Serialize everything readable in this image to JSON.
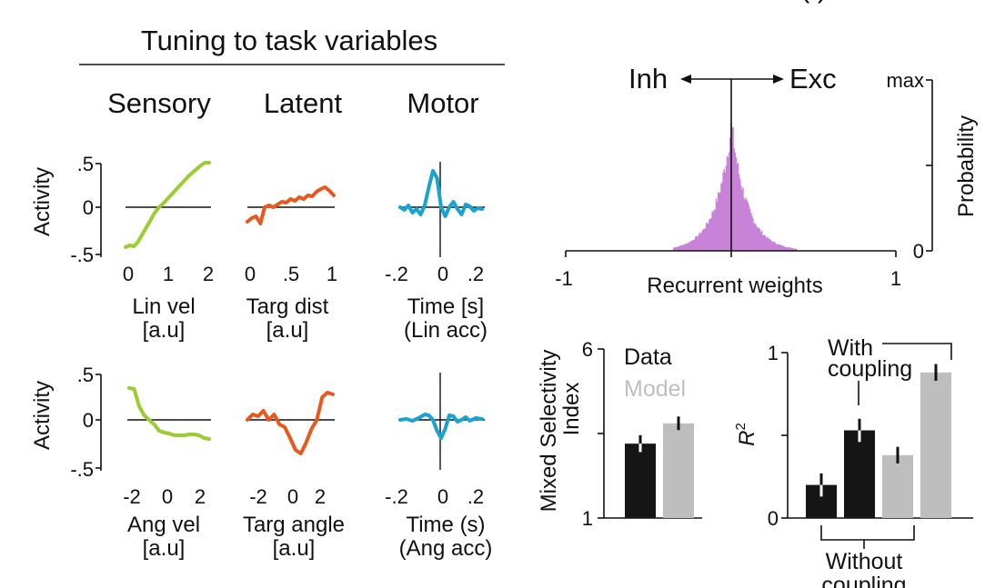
{
  "colors": {
    "lin_vel": "#9ACD32",
    "targ_dist": "#E8581E",
    "time_lin": "#1AA3D0",
    "ang_vel": "#9ACD32",
    "targ_angle": "#E8581E",
    "time_ang": "#1AA3D0",
    "hist": "#C882D8",
    "data_bar": "#151515",
    "model_bar": "#BEBEBE"
  },
  "header": {
    "title": "Tuning to task variables",
    "top_right_fragment": "(         )"
  },
  "column_labels": [
    "Sensory",
    "Latent",
    "Motor"
  ],
  "activity_label": "Activity",
  "y_ticks": [
    ".5",
    "0",
    "-.5"
  ],
  "chart_data": [
    {
      "type": "line",
      "id": "lin_vel",
      "xticks": [
        "0",
        "1",
        "2"
      ],
      "xlabel": [
        "Lin vel",
        "[a.u]"
      ],
      "xlim": [
        0,
        2
      ],
      "ylim": [
        -0.5,
        0.5
      ],
      "x": [
        0,
        0.1,
        0.2,
        0.3,
        0.4,
        0.5,
        0.6,
        0.7,
        0.8,
        0.9,
        1.0,
        1.1,
        1.2,
        1.3,
        1.4,
        1.5,
        1.6,
        1.7,
        1.8,
        1.9,
        2.0
      ],
      "y": [
        -0.44,
        -0.42,
        -0.43,
        -0.38,
        -0.3,
        -0.22,
        -0.14,
        -0.06,
        0.0,
        0.04,
        0.09,
        0.14,
        0.19,
        0.24,
        0.29,
        0.34,
        0.38,
        0.42,
        0.46,
        0.49,
        0.49
      ]
    },
    {
      "type": "line",
      "id": "targ_dist",
      "xticks": [
        "0",
        ".5",
        "1"
      ],
      "xlabel": [
        "Targ dist",
        "[a.u]"
      ],
      "xlim": [
        0,
        1
      ],
      "ylim": [
        -0.5,
        0.5
      ],
      "x": [
        0,
        0.05,
        0.1,
        0.15,
        0.2,
        0.25,
        0.3,
        0.35,
        0.4,
        0.45,
        0.5,
        0.55,
        0.6,
        0.65,
        0.7,
        0.75,
        0.8,
        0.85,
        0.9,
        0.95,
        1.0
      ],
      "y": [
        -0.16,
        -0.12,
        -0.1,
        -0.18,
        0.0,
        0.02,
        0.0,
        0.03,
        0.06,
        0.05,
        0.09,
        0.07,
        0.11,
        0.09,
        0.13,
        0.12,
        0.17,
        0.2,
        0.22,
        0.18,
        0.13
      ]
    },
    {
      "type": "line",
      "id": "time_lin",
      "xticks": [
        "-.2",
        "0",
        ".2"
      ],
      "xlabel": [
        "Time [s]",
        "(Lin acc)"
      ],
      "xlim": [
        -0.2,
        0.2
      ],
      "ylim": [
        -0.5,
        0.5
      ],
      "x": [
        -0.2,
        -0.18,
        -0.16,
        -0.14,
        -0.12,
        -0.1,
        -0.08,
        -0.06,
        -0.04,
        -0.02,
        0.0,
        0.02,
        0.04,
        0.06,
        0.08,
        0.1,
        0.12,
        0.14,
        0.16,
        0.18,
        0.2
      ],
      "y": [
        0.0,
        -0.03,
        0.02,
        -0.06,
        -0.02,
        -0.08,
        0.02,
        0.22,
        0.4,
        0.32,
        0.0,
        -0.1,
        0.0,
        0.06,
        -0.02,
        -0.08,
        0.03,
        0.01,
        -0.04,
        -0.01,
        -0.02
      ]
    },
    {
      "type": "line",
      "id": "ang_vel",
      "xticks": [
        "-2",
        "0",
        "2"
      ],
      "xlabel": [
        "Ang vel",
        "[a.u]"
      ],
      "xlim": [
        -2.4,
        2.4
      ],
      "ylim": [
        -0.5,
        0.5
      ],
      "x": [
        -2.4,
        -2.1,
        -1.8,
        -1.5,
        -1.2,
        -0.9,
        -0.6,
        -0.3,
        0.0,
        0.3,
        0.6,
        0.9,
        1.2,
        1.5,
        1.8,
        2.1,
        2.4
      ],
      "y": [
        0.35,
        0.34,
        0.15,
        0.05,
        0.0,
        -0.05,
        -0.12,
        -0.14,
        -0.15,
        -0.17,
        -0.17,
        -0.17,
        -0.16,
        -0.16,
        -0.17,
        -0.2,
        -0.21
      ]
    },
    {
      "type": "line",
      "id": "targ_angle",
      "xticks": [
        "-2",
        "0",
        "2"
      ],
      "xlabel": [
        "Targ angle",
        "[a.u]"
      ],
      "xlim": [
        -2.4,
        2.4
      ],
      "ylim": [
        -0.5,
        0.5
      ],
      "x": [
        -2.4,
        -2.1,
        -1.8,
        -1.5,
        -1.2,
        -0.9,
        -0.6,
        -0.3,
        0.0,
        0.3,
        0.6,
        0.9,
        1.2,
        1.5,
        1.8,
        2.1,
        2.4
      ],
      "y": [
        0.0,
        0.06,
        0.04,
        0.1,
        0.0,
        0.06,
        -0.05,
        -0.08,
        -0.2,
        -0.33,
        -0.37,
        -0.25,
        -0.1,
        0.0,
        0.25,
        0.3,
        0.28
      ]
    },
    {
      "type": "line",
      "id": "time_ang",
      "xticks": [
        "-.2",
        "0",
        ".2"
      ],
      "xlabel": [
        "Time (s)",
        "(Ang acc)"
      ],
      "xlim": [
        -0.2,
        0.2
      ],
      "ylim": [
        -0.5,
        0.5
      ],
      "x": [
        -0.2,
        -0.17,
        -0.14,
        -0.11,
        -0.08,
        -0.06,
        -0.04,
        -0.02,
        0.0,
        0.02,
        0.04,
        0.06,
        0.08,
        0.1,
        0.12,
        0.14,
        0.17,
        0.2
      ],
      "y": [
        0.0,
        0.01,
        -0.01,
        0.02,
        0.06,
        0.05,
        0.0,
        -0.12,
        -0.2,
        -0.1,
        0.05,
        0.04,
        -0.02,
        0.0,
        0.03,
        -0.01,
        0.02,
        0.01
      ]
    },
    {
      "type": "bar",
      "id": "weights_hist",
      "title_left": "Inh",
      "title_right": "Exc",
      "xlabel": "Recurrent weights",
      "ylabel": "Probability",
      "xticks": [
        "-1",
        "0",
        "1"
      ],
      "xlim": [
        -1,
        1
      ],
      "ytick_top": "max",
      "ytick_bottom": "0",
      "distribution": {
        "kind": "peaked",
        "center": 0.0,
        "spread": 0.12,
        "range": [
          -0.35,
          0.4
        ]
      }
    },
    {
      "type": "bar",
      "id": "mixed_selectivity",
      "ylabel": [
        "Mixed Selectivity",
        "Index"
      ],
      "yticks": [
        "6",
        "1"
      ],
      "ylim": [
        1,
        6
      ],
      "legend": [
        "Data",
        "Model"
      ],
      "categories": [
        "Data",
        "Model"
      ],
      "values": [
        3.2,
        3.8
      ],
      "errors": [
        0.25,
        0.2
      ]
    },
    {
      "type": "bar",
      "id": "r2",
      "ylabel": "R",
      "ylabel_sup": "2",
      "yticks": [
        "1",
        "0"
      ],
      "ylim": [
        0,
        1
      ],
      "annotations": {
        "with": [
          "With",
          "coupling"
        ],
        "without": [
          "Without",
          "coupling"
        ]
      },
      "categories": [
        "Data without coupling",
        "Data with coupling",
        "Model without coupling",
        "Model with coupling"
      ],
      "values": [
        0.2,
        0.53,
        0.38,
        0.88
      ],
      "errors": [
        0.07,
        0.07,
        0.05,
        0.05
      ]
    }
  ]
}
